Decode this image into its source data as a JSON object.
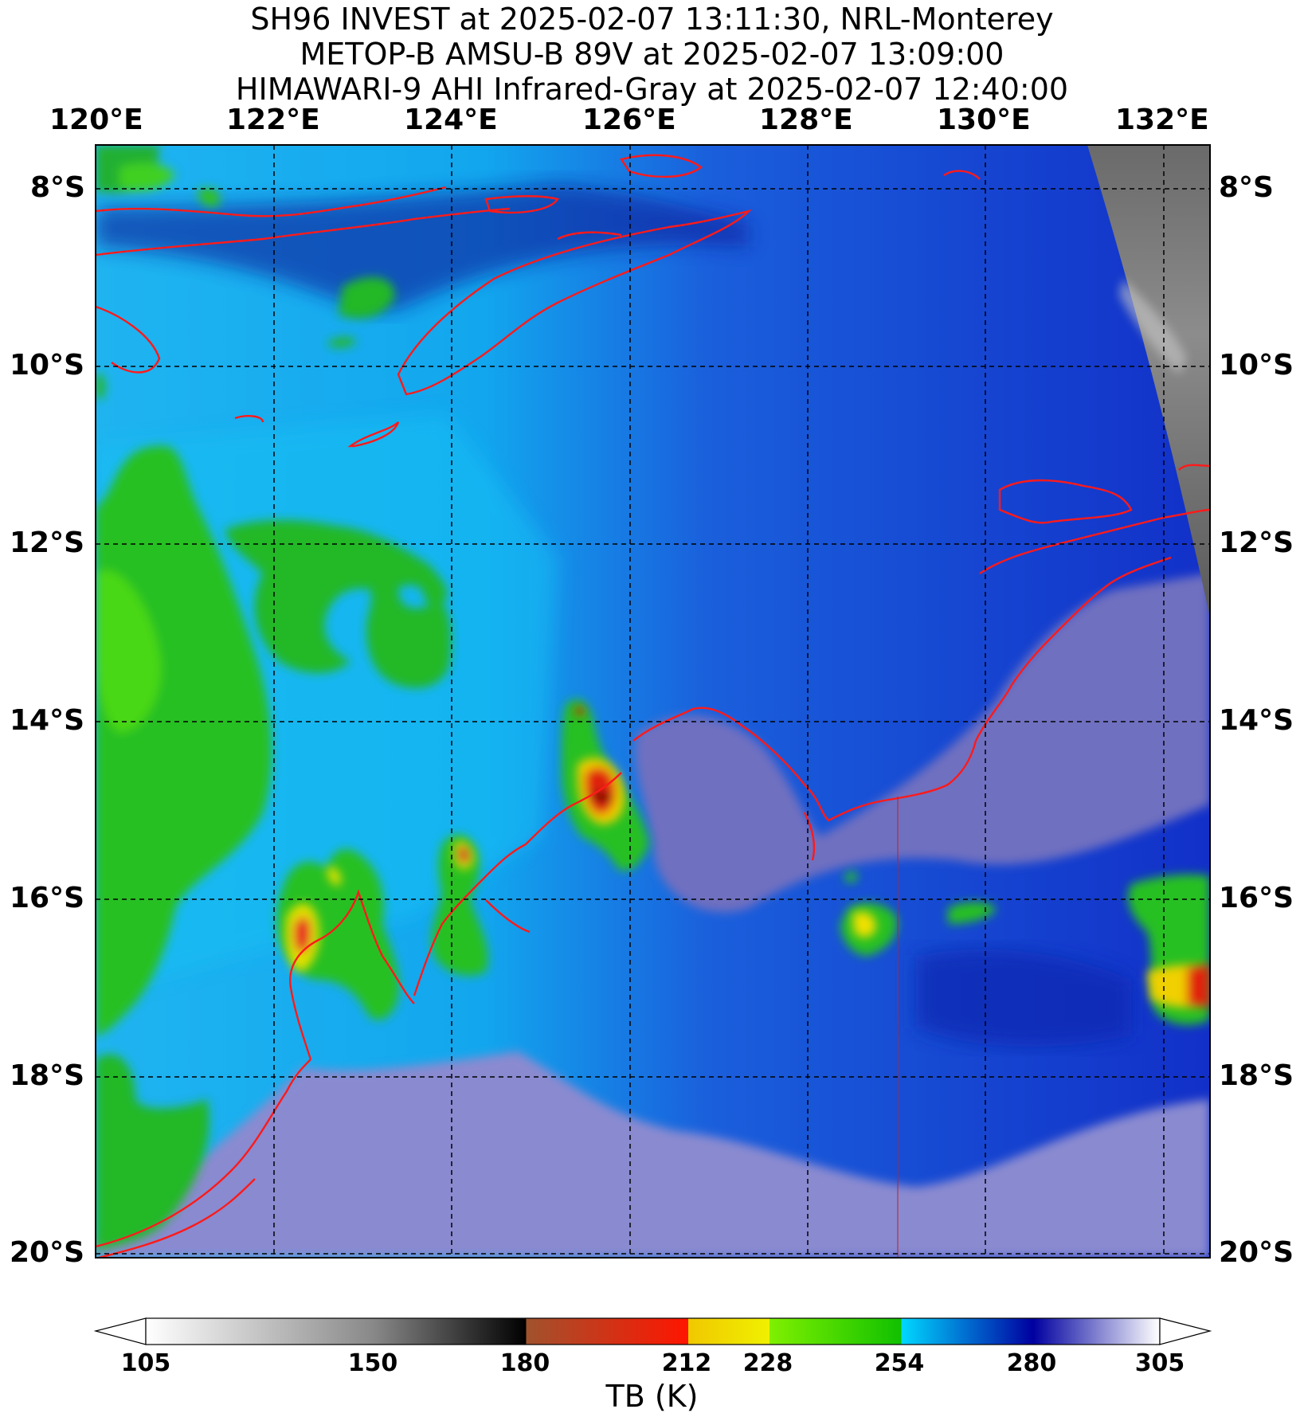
{
  "titles": [
    "SH96 INVEST at 2025-02-07 13:11:30, NRL-Monterey",
    "METOP-B AMSU-B 89V at 2025-02-07 13:09:00",
    "HIMAWARI-9 AHI Infrared-Gray at 2025-02-07 12:40:00"
  ],
  "lon_ticks": [
    "120°E",
    "122°E",
    "124°E",
    "126°E",
    "128°E",
    "130°E",
    "132°E"
  ],
  "lat_ticks": [
    "8°S",
    "10°S",
    "12°S",
    "14°S",
    "16°S",
    "18°S",
    "20°S"
  ],
  "colorbar": {
    "title": "TB (K)",
    "tick_labels": [
      "105",
      "150",
      "180",
      "212",
      "228",
      "254",
      "280",
      "305"
    ],
    "stops": [
      {
        "value": 105,
        "color": "#ffffff"
      },
      {
        "value": 150,
        "color": "#888888"
      },
      {
        "value": 180,
        "color": "#000000"
      },
      {
        "value": 180.01,
        "color": "#a0522d"
      },
      {
        "value": 212,
        "color": "#ff1500"
      },
      {
        "value": 212.01,
        "color": "#f0c800"
      },
      {
        "value": 228,
        "color": "#f0f000"
      },
      {
        "value": 228.01,
        "color": "#80f000"
      },
      {
        "value": 254,
        "color": "#10c000"
      },
      {
        "value": 254.01,
        "color": "#00d8ff"
      },
      {
        "value": 280,
        "color": "#0000a0"
      },
      {
        "value": 305,
        "color": "#ffffff"
      }
    ]
  },
  "colors": {
    "coastline": "#ff1a1a",
    "land_warm": "#8080c4",
    "ocean": "#1b3ed8",
    "convection": "#10c000"
  }
}
